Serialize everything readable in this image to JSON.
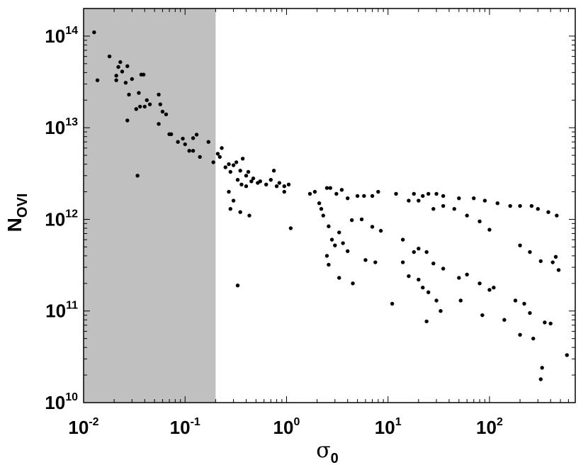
{
  "chart_data": {
    "type": "scatter",
    "title": "",
    "xlabel": "σ0",
    "xlabel_symbol": "σ",
    "xlabel_sub": "0",
    "ylabel": "NOVI",
    "ylabel_main": "N",
    "ylabel_sub": "OVI",
    "xscale": "log",
    "yscale": "log",
    "xlim": [
      0.01,
      700
    ],
    "ylim": [
      10000000000.0,
      200000000000000.0
    ],
    "x_ticks": [
      {
        "base": "10",
        "exp": "-2",
        "value": 0.01
      },
      {
        "base": "10",
        "exp": "-1",
        "value": 0.1
      },
      {
        "base": "10",
        "exp": "0",
        "value": 1
      },
      {
        "base": "10",
        "exp": "1",
        "value": 10
      },
      {
        "base": "10",
        "exp": "2",
        "value": 100
      }
    ],
    "y_ticks": [
      {
        "base": "10",
        "exp": "10",
        "value": 10000000000.0
      },
      {
        "base": "10",
        "exp": "11",
        "value": 100000000000.0
      },
      {
        "base": "10",
        "exp": "12",
        "value": 1000000000000.0
      },
      {
        "base": "10",
        "exp": "13",
        "value": 10000000000000.0
      },
      {
        "base": "10",
        "exp": "14",
        "value": 100000000000000.0
      }
    ],
    "shaded_region": {
      "x_from": 0.01,
      "x_to": 0.2,
      "color": "#c0c0c0"
    },
    "grid": false,
    "legend": "none",
    "marker_color": "#000000",
    "points": [
      [
        0.0127,
        110000000000000.0
      ],
      [
        0.0137,
        33000000000000.0
      ],
      [
        0.018,
        60000000000000.0
      ],
      [
        0.021,
        37000000000000.0
      ],
      [
        0.022,
        46000000000000.0
      ],
      [
        0.023,
        52000000000000.0
      ],
      [
        0.024,
        41000000000000.0
      ],
      [
        0.021,
        33000000000000.0
      ],
      [
        0.027,
        47000000000000.0
      ],
      [
        0.026,
        31000000000000.0
      ],
      [
        0.03,
        34000000000000.0
      ],
      [
        0.028,
        23000000000000.0
      ],
      [
        0.033,
        16000000000000.0
      ],
      [
        0.035,
        24000000000000.0
      ],
      [
        0.037,
        38000000000000.0
      ],
      [
        0.036,
        17000000000000.0
      ],
      [
        0.039,
        38000000000000.0
      ],
      [
        0.04,
        17000000000000.0
      ],
      [
        0.042,
        20000000000000.0
      ],
      [
        0.045,
        18000000000000.0
      ],
      [
        0.027,
        12000000000000.0
      ],
      [
        0.034,
        3000000000000.0
      ],
      [
        0.055,
        23000000000000.0
      ],
      [
        0.057,
        18000000000000.0
      ],
      [
        0.06,
        15000000000000.0
      ],
      [
        0.055,
        11000000000000.0
      ],
      [
        0.065,
        14000000000000.0
      ],
      [
        0.07,
        8500000000000.0
      ],
      [
        0.073,
        8500000000000.0
      ],
      [
        0.085,
        7000000000000.0
      ],
      [
        0.095,
        7600000000000.0
      ],
      [
        0.1,
        6600000000000.0
      ],
      [
        0.12,
        7700000000000.0
      ],
      [
        0.13,
        8400000000000.0
      ],
      [
        0.11,
        5600000000000.0
      ],
      [
        0.12,
        5600000000000.0
      ],
      [
        0.14,
        4800000000000.0
      ],
      [
        0.17,
        7000000000000.0
      ],
      [
        0.19,
        4200000000000.0
      ],
      [
        0.21,
        5200000000000.0
      ],
      [
        0.23,
        6000000000000.0
      ],
      [
        0.22,
        4800000000000.0
      ],
      [
        0.25,
        3700000000000.0
      ],
      [
        0.27,
        4000000000000.0
      ],
      [
        0.3,
        3900000000000.0
      ],
      [
        0.28,
        3300000000000.0
      ],
      [
        0.32,
        4200000000000.0
      ],
      [
        0.35,
        3400000000000.0
      ],
      [
        0.37,
        4600000000000.0
      ],
      [
        0.4,
        3000000000000.0
      ],
      [
        0.42,
        3300000000000.0
      ],
      [
        0.45,
        2600000000000.0
      ],
      [
        0.47,
        2800000000000.0
      ],
      [
        0.52,
        2500000000000.0
      ],
      [
        0.55,
        2600000000000.0
      ],
      [
        0.63,
        2400000000000.0
      ],
      [
        0.7,
        2700000000000.0
      ],
      [
        0.75,
        3400000000000.0
      ],
      [
        0.8,
        2300000000000.0
      ],
      [
        0.85,
        2500000000000.0
      ],
      [
        0.95,
        2300000000000.0
      ],
      [
        1.05,
        2400000000000.0
      ],
      [
        0.36,
        2400000000000.0
      ],
      [
        0.4,
        2300000000000.0
      ],
      [
        0.33,
        2700000000000.0
      ],
      [
        0.27,
        2000000000000.0
      ],
      [
        0.28,
        1300000000000.0
      ],
      [
        0.3,
        1600000000000.0
      ],
      [
        0.35,
        1200000000000.0
      ],
      [
        0.43,
        1100000000000.0
      ],
      [
        0.95,
        2000000000000.0
      ],
      [
        1.7,
        1900000000000.0
      ],
      [
        1.9,
        2000000000000.0
      ],
      [
        2.5,
        2200000000000.0
      ],
      [
        2.7,
        2200000000000.0
      ],
      [
        3.1,
        1900000000000.0
      ],
      [
        3.5,
        2100000000000.0
      ],
      [
        4.0,
        1700000000000.0
      ],
      [
        5.0,
        1800000000000.0
      ],
      [
        5.8,
        1800000000000.0
      ],
      [
        7.0,
        1800000000000.0
      ],
      [
        8.0,
        2000000000000.0
      ],
      [
        12.0,
        1900000000000.0
      ],
      [
        18.0,
        1900000000000.0
      ],
      [
        22.0,
        1800000000000.0
      ],
      [
        25.0,
        1900000000000.0
      ],
      [
        30.0,
        1900000000000.0
      ],
      [
        35.0,
        1800000000000.0
      ],
      [
        50.0,
        1700000000000.0
      ],
      [
        70.0,
        1700000000000.0
      ],
      [
        90.0,
        1600000000000.0
      ],
      [
        120.0,
        1500000000000.0
      ],
      [
        160.0,
        1400000000000.0
      ],
      [
        200.0,
        1400000000000.0
      ],
      [
        260.0,
        1400000000000.0
      ],
      [
        300.0,
        1300000000000.0
      ],
      [
        380.0,
        1200000000000.0
      ],
      [
        460.0,
        1100000000000.0
      ],
      [
        1.1,
        800000000000.0
      ],
      [
        2.1,
        1500000000000.0
      ],
      [
        2.2,
        1300000000000.0
      ],
      [
        2.3,
        1100000000000.0
      ],
      [
        2.6,
        840000000000.0
      ],
      [
        2.8,
        600000000000.0
      ],
      [
        3.3,
        720000000000.0
      ],
      [
        3.6,
        550000000000.0
      ],
      [
        4.4,
        980000000000.0
      ],
      [
        5.5,
        1000000000000.0
      ],
      [
        7.0,
        830000000000.0
      ],
      [
        8.5,
        750000000000.0
      ],
      [
        16.0,
        1600000000000.0
      ],
      [
        20.0,
        1600000000000.0
      ],
      [
        28.0,
        1300000000000.0
      ],
      [
        35.0,
        1400000000000.0
      ],
      [
        45.0,
        1300000000000.0
      ],
      [
        60.0,
        1100000000000.0
      ],
      [
        80.0,
        950000000000.0
      ],
      [
        100.0,
        770000000000.0
      ],
      [
        2.5,
        400000000000.0
      ],
      [
        2.6,
        320000000000.0
      ],
      [
        3.0,
        520000000000.0
      ],
      [
        4.0,
        450000000000.0
      ],
      [
        6.0,
        360000000000.0
      ],
      [
        7.5,
        340000000000.0
      ],
      [
        14.0,
        600000000000.0
      ],
      [
        18.0,
        440000000000.0
      ],
      [
        20.0,
        480000000000.0
      ],
      [
        24.0,
        440000000000.0
      ],
      [
        28.0,
        330000000000.0
      ],
      [
        35.0,
        290000000000.0
      ],
      [
        50.0,
        230000000000.0
      ],
      [
        60.0,
        250000000000.0
      ],
      [
        80.0,
        200000000000.0
      ],
      [
        100.0,
        170000000000.0
      ],
      [
        14.0,
        340000000000.0
      ],
      [
        16.0,
        240000000000.0
      ],
      [
        20.0,
        220000000000.0
      ],
      [
        22.0,
        180000000000.0
      ],
      [
        25.0,
        160000000000.0
      ],
      [
        30.0,
        130000000000.0
      ],
      [
        3.3,
        230000000000.0
      ],
      [
        4.5,
        200000000000.0
      ],
      [
        11.0,
        120000000000.0
      ],
      [
        33.0,
        100000000000.0
      ],
      [
        52.0,
        130000000000.0
      ],
      [
        85.0,
        90000000000.0
      ],
      [
        110.0,
        180000000000.0
      ],
      [
        140.0,
        80000000000.0
      ],
      [
        180.0,
        130000000000.0
      ],
      [
        220.0,
        120000000000.0
      ],
      [
        250.0,
        95000000000.0
      ],
      [
        0.33,
        190000000000.0
      ],
      [
        24.0,
        77000000000.0
      ],
      [
        200.0,
        55000000000.0
      ],
      [
        270.0,
        50000000000.0
      ],
      [
        330.0,
        24000000000.0
      ],
      [
        320.0,
        18000000000.0
      ],
      [
        350.0,
        75000000000.0
      ],
      [
        400.0,
        73000000000.0
      ],
      [
        420.0,
        340000000000.0
      ],
      [
        450.0,
        390000000000.0
      ],
      [
        480.0,
        280000000000.0
      ],
      [
        200.0,
        520000000000.0
      ],
      [
        250.0,
        440000000000.0
      ],
      [
        320.0,
        350000000000.0
      ],
      [
        580.0,
        33000000000.0
      ]
    ]
  }
}
